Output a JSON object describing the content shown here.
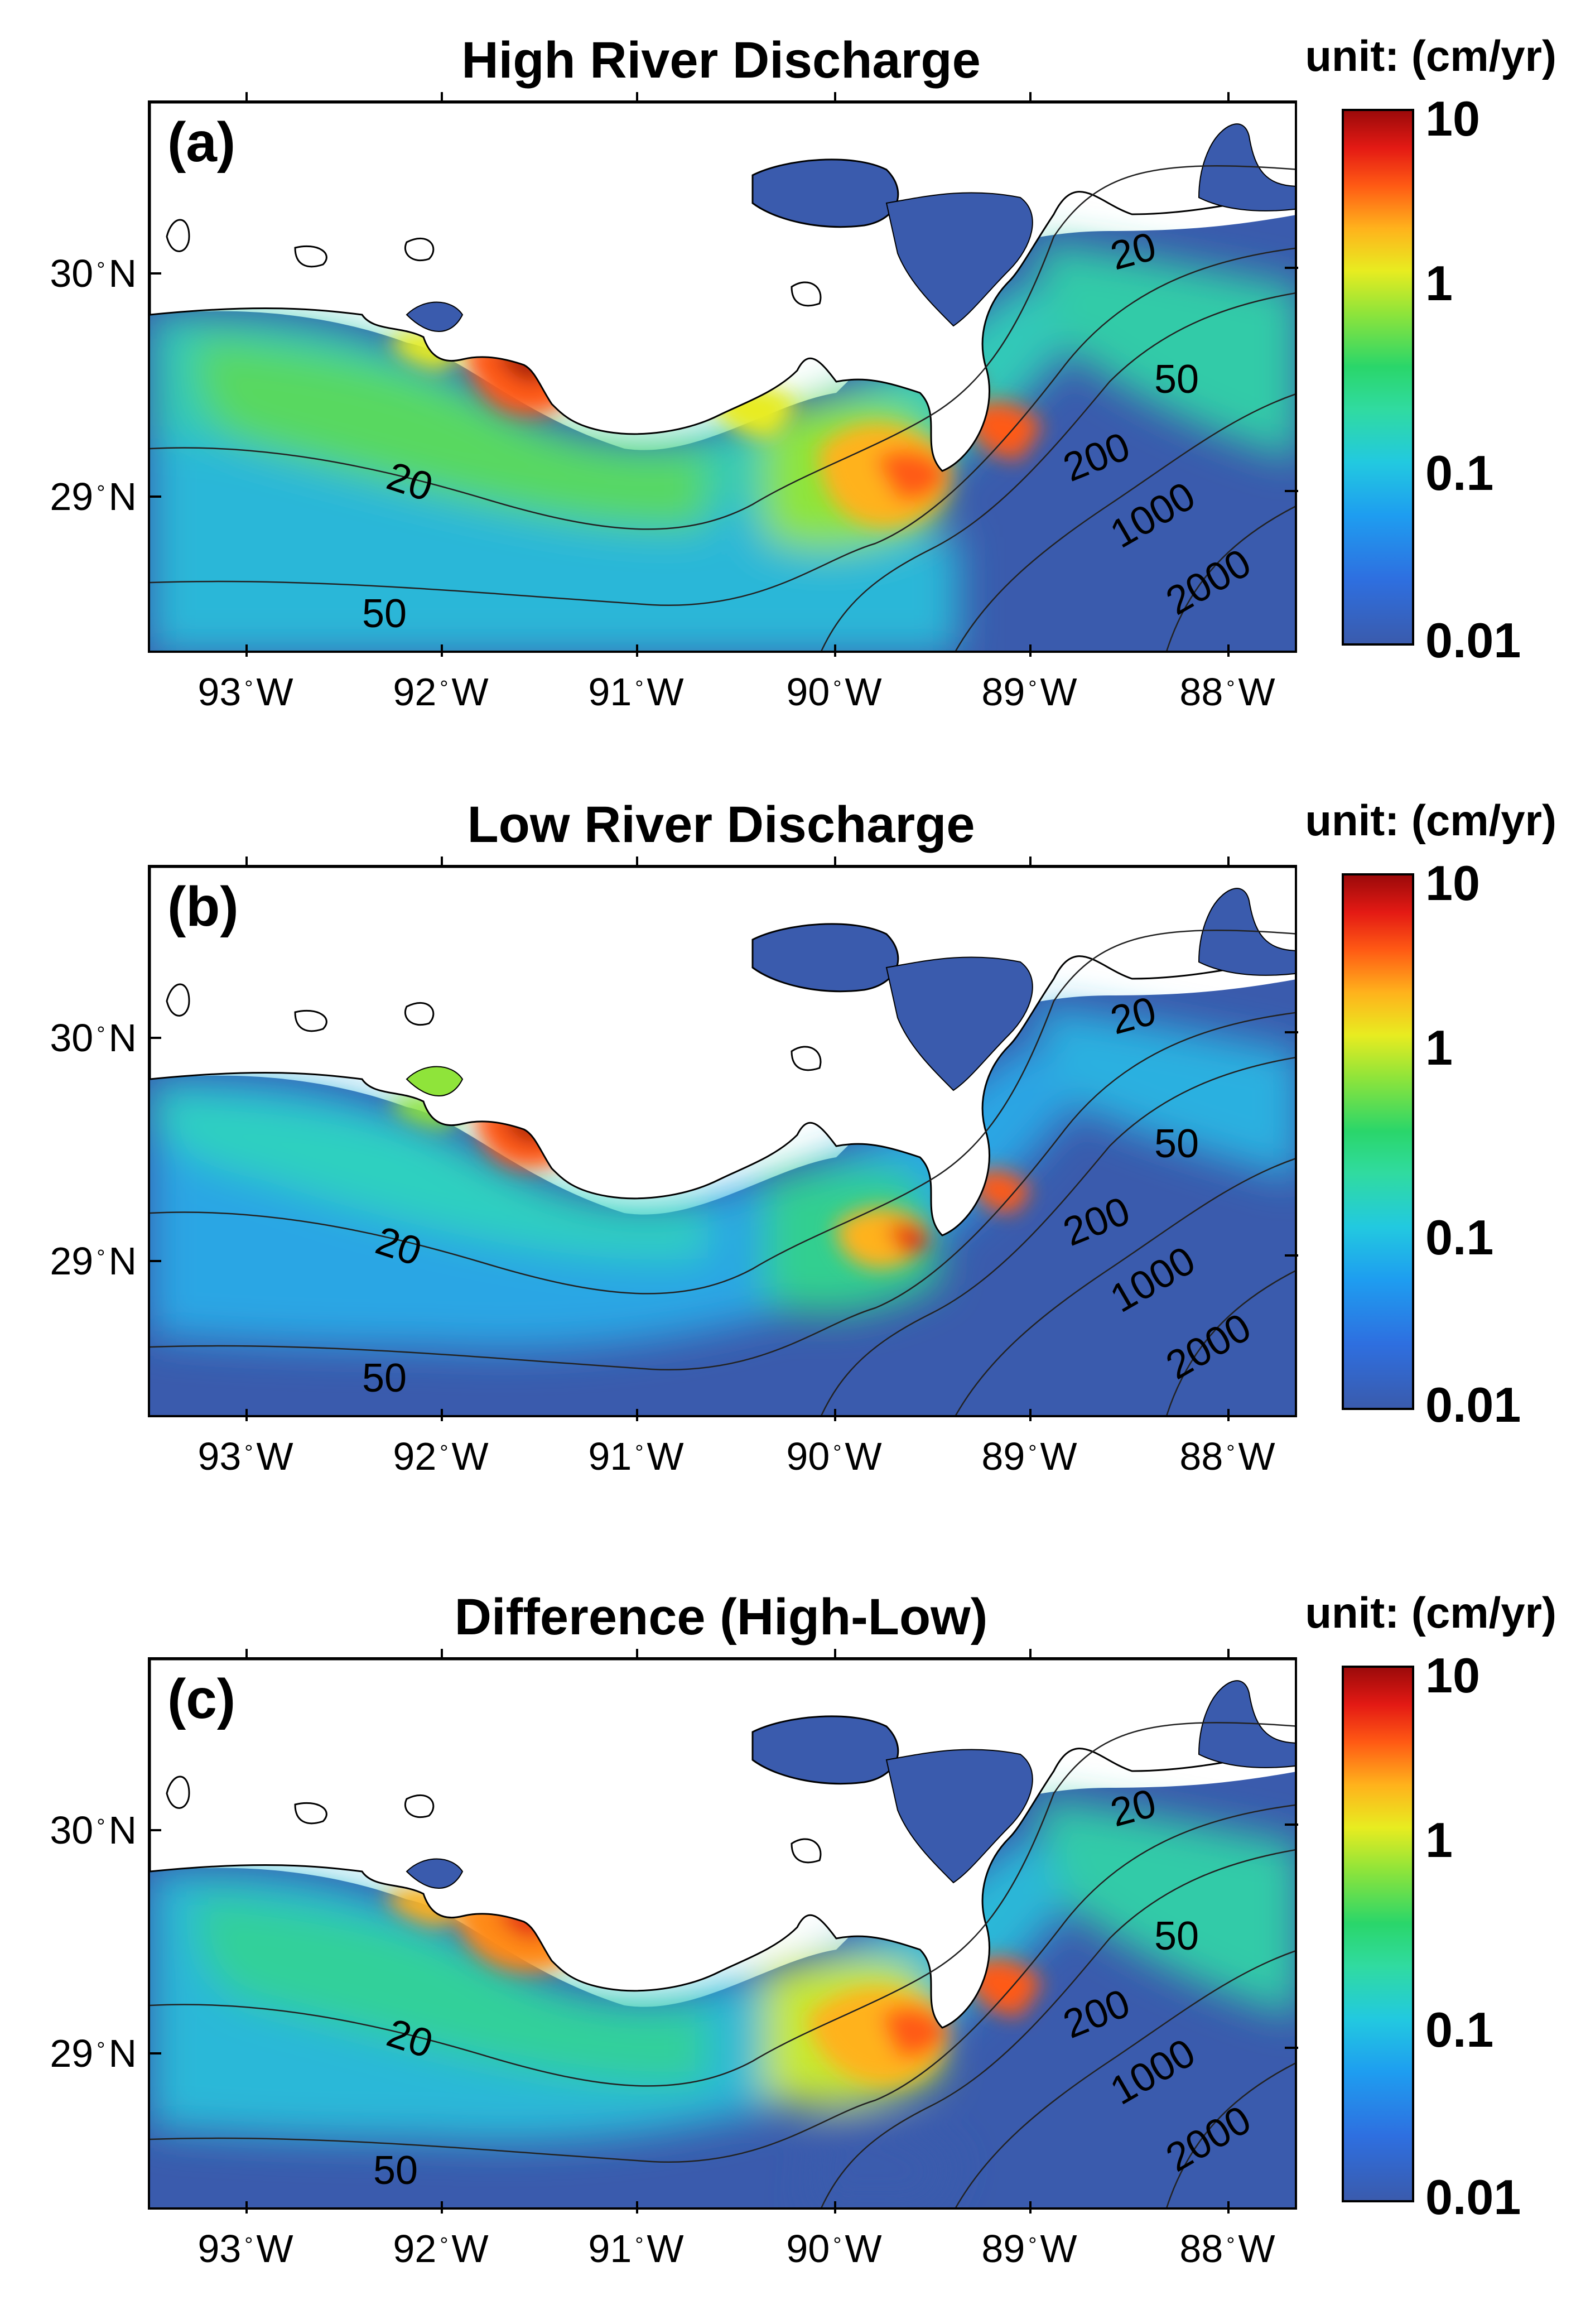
{
  "figure": {
    "panels": [
      {
        "letter": "(a)",
        "title": "High River Discharge",
        "unit": "unit: (cm/yr)"
      },
      {
        "letter": "(b)",
        "title": "Low River Discharge",
        "unit": "unit: (cm/yr)"
      },
      {
        "letter": "(c)",
        "title": "Difference (High-Low)",
        "unit": "unit: (cm/yr)"
      }
    ],
    "colorbar": {
      "scale": "log",
      "labels": [
        "10",
        "1",
        "0.1",
        "0.01"
      ],
      "colors": [
        "#9c0a0a",
        "#ff5a14",
        "#e8ec20",
        "#2ad66a",
        "#22c9e0",
        "#2e6fe0",
        "#3a5bad"
      ]
    },
    "longitude_labels": [
      "93",
      "92",
      "91",
      "90",
      "89",
      "88"
    ],
    "longitude_suffix": "W",
    "latitude_labels": [
      "30",
      "29"
    ],
    "latitude_suffix": "N",
    "degree_symbol": "°",
    "contours": [
      "20",
      "50",
      "200",
      "1000",
      "2000"
    ]
  }
}
